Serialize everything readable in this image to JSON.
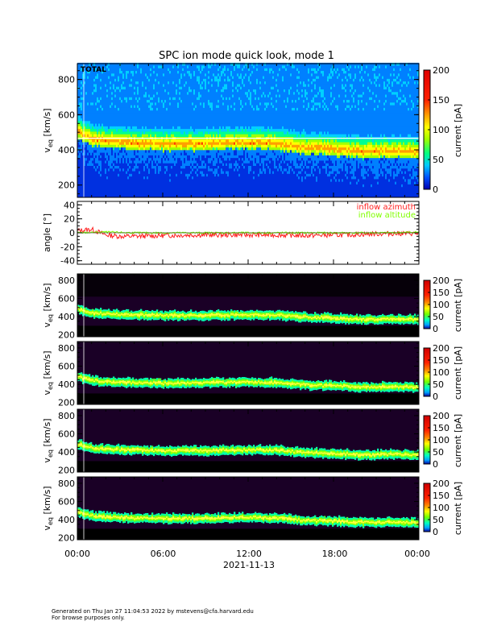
{
  "title": "SPC ion mode quick look, mode 1",
  "footer": {
    "line1": "Generated on Thu Jan 27 11:04:53 2022 by mstevens@cfa.harvard.edu",
    "line2": "For browse purposes only."
  },
  "colors": {
    "azimuth": "#ff2020",
    "altitude": "#80ff00",
    "panel_bg_dark": "#1a0026"
  },
  "chart_data": [
    {
      "type": "heatmap",
      "panel_label": "TOTAL",
      "ylabel": "v",
      "ylabel_sub": "eq",
      "ylabel_unit": "[km/s]",
      "yticks": [
        200,
        400,
        600,
        800
      ],
      "ylim": [
        130,
        890
      ],
      "xlim": [
        0,
        24
      ],
      "colorbar_label": "current [pA]",
      "colorbar_ticks": [
        0,
        50,
        100,
        150,
        200
      ],
      "colorbar_range": [
        0,
        200
      ],
      "peak_velocity_hours": [
        0,
        1,
        3,
        6,
        8,
        10,
        12,
        14,
        16,
        18,
        20,
        22,
        24
      ],
      "peak_velocity_values": [
        500,
        455,
        440,
        430,
        430,
        435,
        440,
        435,
        410,
        400,
        385,
        390,
        385
      ],
      "colormap": "rainbow"
    },
    {
      "type": "line",
      "ylabel": "angle [°]",
      "yticks": [
        -40,
        -20,
        0,
        20,
        40
      ],
      "ylim": [
        -45,
        45
      ],
      "xlim": [
        0,
        24
      ],
      "series": [
        {
          "name": "inflow azimuth",
          "x": [
            0,
            1,
            2,
            3,
            4,
            6,
            8,
            10,
            12,
            14,
            16,
            18,
            19,
            20,
            22,
            24
          ],
          "values": [
            3,
            5,
            -3,
            -5,
            -5,
            -4,
            -3,
            -3,
            -3,
            -3,
            -4,
            -3,
            -3,
            -2,
            -1,
            -1
          ]
        },
        {
          "name": "inflow altitude",
          "x": [
            0,
            2,
            4,
            6,
            8,
            10,
            12,
            14,
            16,
            18,
            20,
            22,
            24
          ],
          "values": [
            0,
            1,
            0,
            0,
            0,
            0,
            0,
            0,
            0,
            0,
            0,
            0,
            1
          ]
        }
      ]
    },
    {
      "type": "heatmap",
      "ylabel": "v",
      "ylabel_sub": "eq",
      "ylabel_unit": "[km/s]",
      "yticks": [
        200,
        400,
        600,
        800
      ],
      "ylim": [
        180,
        870
      ],
      "colorbar_label": "current [pA]",
      "colorbar_ticks": [
        0,
        50,
        100,
        150,
        200
      ],
      "colormap": "dark-rainbow"
    },
    {
      "type": "heatmap",
      "ylabel": "v",
      "ylabel_sub": "eq",
      "ylabel_unit": "[km/s]",
      "yticks": [
        200,
        400,
        600,
        800
      ],
      "ylim": [
        180,
        870
      ],
      "colorbar_label": "current [pA]",
      "colorbar_ticks": [
        0,
        50,
        100,
        150,
        200
      ],
      "colormap": "dark-rainbow"
    },
    {
      "type": "heatmap",
      "ylabel": "v",
      "ylabel_sub": "eq",
      "ylabel_unit": "[km/s]",
      "yticks": [
        200,
        400,
        600,
        800
      ],
      "ylim": [
        180,
        870
      ],
      "colorbar_label": "current [pA]",
      "colorbar_ticks": [
        0,
        50,
        100,
        150,
        200
      ],
      "colormap": "dark-rainbow"
    },
    {
      "type": "heatmap",
      "ylabel": "v",
      "ylabel_sub": "eq",
      "ylabel_unit": "[km/s]",
      "yticks": [
        200,
        400,
        600,
        800
      ],
      "ylim": [
        180,
        870
      ],
      "colorbar_label": "current [pA]",
      "colorbar_ticks": [
        0,
        50,
        100,
        150,
        200
      ],
      "colormap": "dark-rainbow"
    }
  ],
  "xaxis": {
    "ticks": [
      "00:00",
      "06:00",
      "12:00",
      "18:00",
      "00:00"
    ],
    "tick_hours": [
      0,
      6,
      12,
      18,
      24
    ],
    "date_label": "2021-11-13"
  }
}
